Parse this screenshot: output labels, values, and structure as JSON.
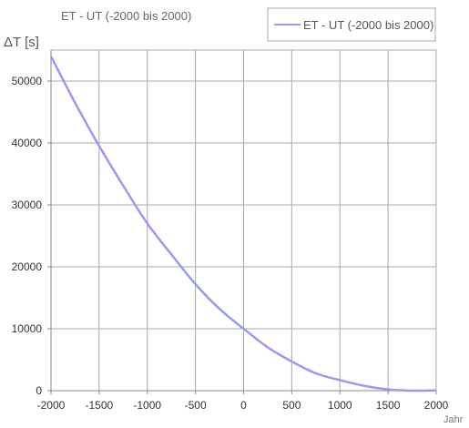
{
  "chart_data": {
    "type": "line",
    "title": "ET - UT (-2000 bis 2000)",
    "ylabel": "ΔT [s]",
    "xlabel": "Jahr",
    "xlim": [
      -2000,
      2000
    ],
    "ylim": [
      0,
      55000
    ],
    "x_ticks": [
      -2000,
      -1500,
      -1000,
      -500,
      0,
      500,
      1000,
      1500,
      2000
    ],
    "y_ticks": [
      0,
      10000,
      20000,
      30000,
      40000,
      50000
    ],
    "x_tick_labels": [
      "-2000",
      "-1500",
      "-1000",
      "-500",
      "0",
      "500",
      "1000",
      "1500",
      "2000"
    ],
    "y_tick_labels": [
      "0",
      "10000",
      "20000",
      "30000",
      "40000",
      "50000"
    ],
    "grid": true,
    "legend": "top-right",
    "colors": {
      "series": "#9999ee",
      "grid": "#a8a8a8",
      "axis": "#888888"
    },
    "series": [
      {
        "name": "ET - UT (-2000 bis 2000)",
        "x": [
          -2000,
          -1750,
          -1500,
          -1250,
          -1000,
          -750,
          -500,
          -250,
          0,
          250,
          500,
          750,
          1000,
          1250,
          1500,
          1750,
          2000
        ],
        "values": [
          54000,
          46500,
          39500,
          33100,
          27000,
          22000,
          17200,
          13200,
          10000,
          7000,
          4700,
          2800,
          1700,
          800,
          200,
          0,
          60
        ]
      }
    ]
  }
}
